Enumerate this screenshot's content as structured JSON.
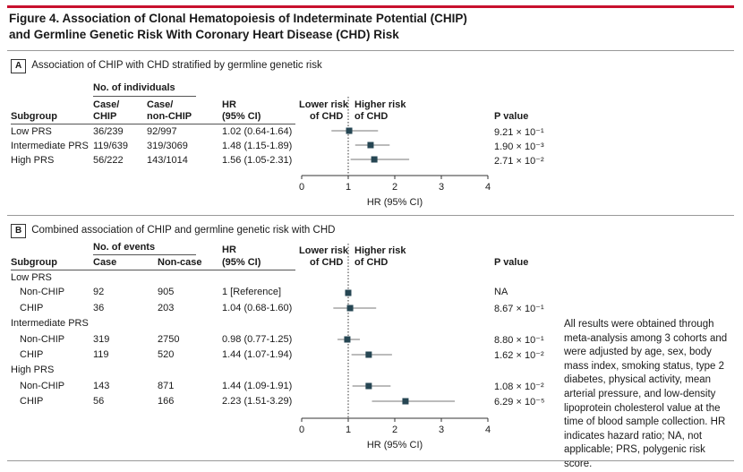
{
  "figure": {
    "title_line1": "Figure 4. Association of Clonal Hematopoiesis of Indeterminate Potential (CHIP)",
    "title_line2": "and Germline Genetic Risk With Coronary Heart Disease (CHD) Risk"
  },
  "panel_a": {
    "letter": "A",
    "heading": "Association of CHIP with CHD stratified by germline genetic risk",
    "group_header": "No. of individuals",
    "col_subgroup": "Subgroup",
    "col_case_chip_1": "Case/",
    "col_case_chip_2": "CHIP",
    "col_case_nonchip_1": "Case/",
    "col_case_nonchip_2": "non-CHIP",
    "col_hr_1": "HR",
    "col_hr_2": "(95% CI)",
    "lower_risk_1": "Lower risk",
    "lower_risk_2": "of CHD",
    "higher_risk_1": "Higher risk",
    "higher_risk_2": "of CHD",
    "col_p": "P value",
    "rows": [
      {
        "subgroup": "Low PRS",
        "case_chip": "36/239",
        "case_nonchip": "92/997",
        "hr_text": "1.02 (0.64-1.64)",
        "p": "9.21 × 10⁻¹"
      },
      {
        "subgroup": "Intermediate PRS",
        "case_chip": "119/639",
        "case_nonchip": "319/3069",
        "hr_text": "1.48 (1.15-1.89)",
        "p": "1.90 × 10⁻³"
      },
      {
        "subgroup": "High PRS",
        "case_chip": "56/222",
        "case_nonchip": "143/1014",
        "hr_text": "1.56 (1.05-2.31)",
        "p": "2.71 × 10⁻²"
      }
    ],
    "axis_ticks": [
      "0",
      "1",
      "2",
      "3",
      "4"
    ],
    "axis_label": "HR (95% CI)"
  },
  "panel_b": {
    "letter": "B",
    "heading": "Combined association of CHIP and germline genetic risk with CHD",
    "group_header": "No. of events",
    "col_subgroup": "Subgroup",
    "col_case": "Case",
    "col_noncase": "Non-case",
    "col_hr_1": "HR",
    "col_hr_2": "(95% CI)",
    "lower_risk_1": "Lower risk",
    "lower_risk_2": "of CHD",
    "higher_risk_1": "Higher risk",
    "higher_risk_2": "of CHD",
    "col_p": "P value",
    "groups": [
      {
        "label": "Low PRS",
        "rows": [
          {
            "label": "Non-CHIP",
            "case": "92",
            "noncase": "905",
            "hr_text": "1 [Reference]",
            "p": "NA"
          },
          {
            "label": "CHIP",
            "case": "36",
            "noncase": "203",
            "hr_text": "1.04 (0.68-1.60)",
            "p": "8.67 × 10⁻¹"
          }
        ]
      },
      {
        "label": "Intermediate PRS",
        "rows": [
          {
            "label": "Non-CHIP",
            "case": "319",
            "noncase": "2750",
            "hr_text": "0.98 (0.77-1.25)",
            "p": "8.80 × 10⁻¹"
          },
          {
            "label": "CHIP",
            "case": "119",
            "noncase": "520",
            "hr_text": "1.44 (1.07-1.94)",
            "p": "1.62 × 10⁻²"
          }
        ]
      },
      {
        "label": "High PRS",
        "rows": [
          {
            "label": "Non-CHIP",
            "case": "143",
            "noncase": "871",
            "hr_text": "1.44 (1.09-1.91)",
            "p": "1.08 × 10⁻²"
          },
          {
            "label": "CHIP",
            "case": "56",
            "noncase": "166",
            "hr_text": "2.23 (1.51-3.29)",
            "p": "6.29 × 10⁻⁵"
          }
        ]
      }
    ],
    "axis_ticks": [
      "0",
      "1",
      "2",
      "3",
      "4"
    ],
    "axis_label": "HR (95% CI)"
  },
  "caption": "All results were obtained through meta-analysis among 3 cohorts and were adjusted by age, sex, body mass index, smoking status, type 2 diabetes, physical activity, mean arterial pressure, and low-density lipoprotein cholesterol value at the time of blood sample collection. HR indicates hazard ratio; NA, not applicable; PRS, polygenic risk score.",
  "chart_data": [
    {
      "type": "scatter",
      "subtype": "forest",
      "categories": [
        "Low PRS",
        "Intermediate PRS",
        "High PRS"
      ],
      "hr": [
        1.02,
        1.48,
        1.56
      ],
      "ci_low": [
        0.64,
        1.15,
        1.05
      ],
      "ci_high": [
        1.64,
        1.89,
        2.31
      ],
      "xlabel": "HR (95% CI)",
      "xlim": [
        0,
        4
      ],
      "xticks": [
        0,
        1,
        2,
        3,
        4
      ],
      "reference_line": 1,
      "marker_color": "#264653"
    },
    {
      "type": "scatter",
      "subtype": "forest",
      "categories": [
        "Low PRS Non-CHIP",
        "Low PRS CHIP",
        "Intermediate PRS Non-CHIP",
        "Intermediate PRS CHIP",
        "High PRS Non-CHIP",
        "High PRS CHIP"
      ],
      "hr": [
        1,
        1.04,
        0.98,
        1.44,
        1.44,
        2.23
      ],
      "ci_low": [
        1,
        0.68,
        0.77,
        1.07,
        1.09,
        1.51
      ],
      "ci_high": [
        1,
        1.6,
        1.25,
        1.94,
        1.91,
        3.29
      ],
      "xlabel": "HR (95% CI)",
      "xlim": [
        0,
        4
      ],
      "xticks": [
        0,
        1,
        2,
        3,
        4
      ],
      "reference_line": 1,
      "marker_color": "#264653"
    }
  ]
}
